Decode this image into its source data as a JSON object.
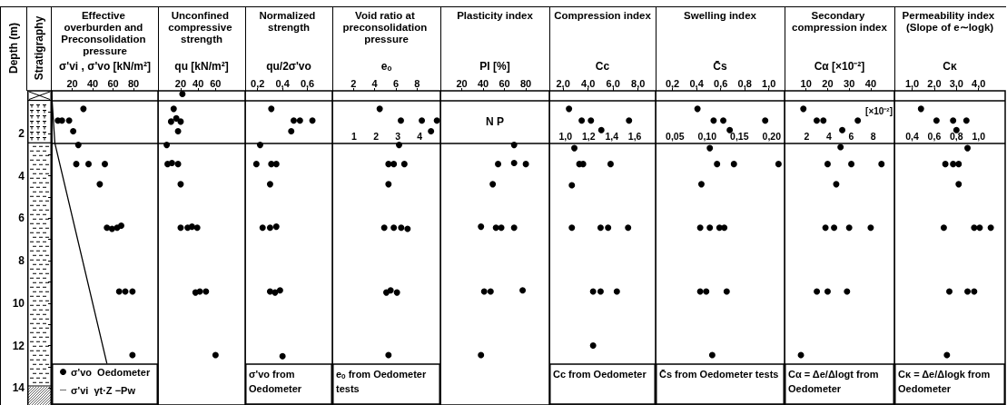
{
  "chart_data": [
    {
      "type": "scatter",
      "title": "Effective overburden and Preconsolidation pressure",
      "xlabel": "σ'vi , σ'vo [kN/m²]",
      "ylabel": "Depth (m)",
      "annotations": [
        "Stratigraphy"
      ],
      "xlim": [
        0,
        104
      ],
      "xticks": [
        20,
        40,
        60,
        80
      ],
      "ylim": [
        14.8,
        0
      ],
      "yticks": [
        {
          "value": 1,
          "label": null
        },
        2,
        {
          "value": 3,
          "label": null
        },
        4,
        {
          "value": 5,
          "label": null
        },
        6,
        {
          "value": 7,
          "label": null
        },
        8,
        {
          "value": 9,
          "label": null
        },
        10,
        {
          "value": 11,
          "label": null
        },
        12,
        {
          "value": 13,
          "label": null
        },
        14
      ],
      "marker": "circle",
      "legend": "bottom left",
      "ref_lines": [
        {
          "axis": "y",
          "value": 0.45
        },
        {
          "axis": "y",
          "value": 2.45
        }
      ],
      "series": [
        {
          "name": "σ'vo  Oedometer",
          "color": "#000000",
          "x": [
            31,
            6,
            10,
            17,
            21,
            26,
            24,
            36,
            52,
            47,
            54,
            59,
            64,
            68,
            66,
            72,
            79,
            79
          ],
          "values": [
            0.85,
            1.4,
            1.4,
            1.4,
            1.9,
            2.55,
            3.45,
            3.45,
            3.45,
            4.4,
            6.45,
            6.5,
            6.45,
            6.35,
            9.45,
            9.45,
            9.45,
            12.45
          ]
        },
        {
          "name": "σ'vi  γt·Z −Pw",
          "type": "line",
          "marker": "none",
          "color": "#000000",
          "x": [
            0,
            3,
            54
          ],
          "values": [
            0.2,
            2.45,
            12.85
          ]
        }
      ]
    },
    {
      "type": "scatter",
      "title": "Unconfined compressive strength",
      "xlabel": "qu [kN/m²]",
      "xlim": [
        -6,
        94
      ],
      "xticks": [
        20,
        40,
        60
      ],
      "ylim": [
        14.8,
        0
      ],
      "tick_labels": "x",
      "marker": "circle",
      "ref_lines": [
        {
          "axis": "y",
          "value": 0.45
        },
        {
          "axis": "y",
          "value": 2.45
        }
      ],
      "series": [
        {
          "color": "#000000",
          "x": [
            22,
            12,
            9,
            15,
            20,
            17,
            4,
            5,
            10,
            17,
            20,
            20,
            28,
            33,
            39,
            37,
            42,
            49,
            60
          ],
          "values": [
            0.15,
            0.85,
            1.45,
            1.3,
            1.45,
            1.9,
            2.55,
            3.45,
            3.4,
            3.45,
            4.4,
            6.45,
            6.45,
            6.4,
            6.45,
            9.5,
            9.45,
            9.45,
            12.45
          ]
        }
      ]
    },
    {
      "type": "scatter",
      "title": "Normalized strength",
      "xlabel": "qu/2σ'vo",
      "xlim": [
        0.1,
        0.8
      ],
      "xticks": [
        {
          "value": 0.2,
          "label": "0,2"
        },
        {
          "value": 0.4,
          "label": "0,4"
        },
        {
          "value": 0.6,
          "label": "0,6"
        }
      ],
      "ylim": [
        14.8,
        0
      ],
      "tick_labels": "x",
      "marker": "circle",
      "ref_lines": [
        {
          "axis": "y",
          "value": 0.45
        },
        {
          "axis": "y",
          "value": 2.45
        }
      ],
      "annotations": [
        "σ'vo from Oedometer"
      ],
      "series": [
        {
          "color": "#000000",
          "x": [
            0.31,
            0.49,
            0.54,
            0.64,
            0.47,
            0.22,
            0.19,
            0.31,
            0.35,
            0.3,
            0.24,
            0.3,
            0.35,
            0.3,
            0.34,
            0.38,
            0.4
          ],
          "values": [
            0.85,
            1.4,
            1.4,
            1.4,
            1.9,
            2.55,
            3.45,
            3.45,
            3.45,
            4.4,
            6.45,
            6.45,
            6.4,
            9.45,
            9.5,
            9.4,
            12.5
          ]
        }
      ]
    },
    {
      "type": "scatter",
      "title": "Void ratio at preconsolidation pressure",
      "xlabel": "eₒ",
      "xlim": [
        0,
        10.2
      ],
      "xticks": [
        2,
        4,
        6,
        8
      ],
      "x2lim": [
        0,
        4.95
      ],
      "x2ticks": [
        1,
        2,
        3,
        4
      ],
      "ylim": [
        14.8,
        0
      ],
      "tick_labels": "x",
      "marker": "circle",
      "ref_lines": [
        {
          "axis": "y",
          "value": 0.45
        },
        {
          "axis": "y",
          "value": 2.45
        }
      ],
      "annotations": [
        "eₒ from Oedometer tests"
      ],
      "series": [
        {
          "color": "#000000",
          "axis": "x2",
          "x": [
            2.17,
            3.14,
            4.1,
            4.79,
            4.52
          ],
          "values": [
            0.85,
            1.4,
            1.4,
            1.4,
            1.9
          ]
        },
        {
          "color": "#000000",
          "x": [
            6.3,
            5.3,
            5.8,
            6.8,
            5.3,
            4.9,
            5.8,
            6.5,
            7.1,
            5.1,
            5.5,
            6.1,
            5.3
          ],
          "values": [
            2.55,
            3.45,
            3.45,
            3.45,
            4.4,
            6.45,
            6.45,
            6.45,
            6.5,
            9.5,
            9.4,
            9.5,
            12.45
          ]
        }
      ]
    },
    {
      "type": "scatter",
      "title": "Plasticity index",
      "xlabel": "PI [%]",
      "xlim": [
        0,
        102
      ],
      "xticks": [
        20,
        40,
        60,
        80
      ],
      "ylim": [
        14.8,
        0
      ],
      "tick_labels": "x",
      "marker": "circle",
      "ref_lines": [
        {
          "axis": "y",
          "value": 0.45
        },
        {
          "axis": "y",
          "value": 2.45
        }
      ],
      "annotations": [
        "N P"
      ],
      "series": [
        {
          "color": "#000000",
          "x": [
            69,
            54,
            69,
            80,
            49,
            38,
            52,
            57,
            69,
            41,
            47,
            77,
            38
          ],
          "values": [
            2.55,
            3.45,
            3.4,
            3.45,
            4.4,
            6.4,
            6.45,
            6.45,
            6.45,
            9.45,
            9.45,
            9.4,
            12.45
          ]
        }
      ]
    },
    {
      "type": "scatter",
      "title": "Compression index",
      "xlabel": "Cc",
      "xlim": [
        0.9,
        9.4
      ],
      "xticks": [
        {
          "value": 2,
          "label": "2,0"
        },
        {
          "value": 4,
          "label": "4,0"
        },
        {
          "value": 6,
          "label": "6,0"
        },
        {
          "value": 8,
          "label": "8,0"
        }
      ],
      "x2lim": [
        0.86,
        1.78
      ],
      "x2ticks": [
        {
          "value": 1,
          "label": "1,0"
        },
        {
          "value": 1.2,
          "label": "1,2"
        },
        {
          "value": 1.4,
          "label": "1,4"
        },
        {
          "value": 1.6,
          "label": "1,6"
        }
      ],
      "ylim": [
        14.8,
        0
      ],
      "tick_labels": "x",
      "marker": "circle",
      "ref_lines": [
        {
          "axis": "y",
          "value": 0.45
        },
        {
          "axis": "y",
          "value": 2.45
        }
      ],
      "annotations": [
        "Cc from Oedometer"
      ],
      "series": [
        {
          "color": "#000000",
          "axis": "x2",
          "x": [
            1.03,
            1.14,
            1.22,
            1.55,
            1.31
          ],
          "values": [
            0.85,
            1.4,
            1.4,
            1.4,
            1.85
          ]
        },
        {
          "color": "#000000",
          "x": [
            2.9,
            3.3,
            3.6,
            5.8,
            2.7,
            2.7,
            5.0,
            5.6,
            7.2,
            4.4,
            5.0,
            6.3,
            4.4
          ],
          "values": [
            2.7,
            3.45,
            3.45,
            3.45,
            4.45,
            6.45,
            6.45,
            6.45,
            6.45,
            9.45,
            9.45,
            9.45,
            12.0
          ]
        }
      ]
    },
    {
      "type": "scatter",
      "title": "Swelling index",
      "xlabel": "C̄s",
      "xlim": [
        0.06,
        1.13
      ],
      "xticks": [
        {
          "value": 0.2,
          "label": "0,2"
        },
        {
          "value": 0.4,
          "label": "0,4"
        },
        {
          "value": 0.6,
          "label": "0,6"
        },
        {
          "value": 0.8,
          "label": "0,8"
        },
        {
          "value": 1,
          "label": "1,0"
        }
      ],
      "x2lim": [
        0.02,
        0.22
      ],
      "x2ticks": [
        {
          "value": 0.05,
          "label": "0,05"
        },
        {
          "value": 0.1,
          "label": "0,10"
        },
        {
          "value": 0.15,
          "label": "0,15"
        },
        {
          "value": 0.2,
          "label": "0,20"
        }
      ],
      "ylim": [
        14.8,
        0
      ],
      "tick_labels": "x",
      "marker": "circle",
      "ref_lines": [
        {
          "axis": "y",
          "value": 0.45
        },
        {
          "axis": "y",
          "value": 2.45
        }
      ],
      "annotations": [
        "C̄s from Oedometer tests"
      ],
      "series": [
        {
          "color": "#000000",
          "axis": "x2",
          "x": [
            0.085,
            0.11,
            0.125,
            0.19,
            0.135
          ],
          "values": [
            0.85,
            1.4,
            1.4,
            1.4,
            1.85
          ]
        },
        {
          "color": "#000000",
          "x": [
            0.51,
            0.57,
            0.71,
            1.08,
            0.44,
            0.43,
            0.51,
            0.59,
            0.63,
            0.43,
            0.48,
            0.65,
            0.53
          ],
          "values": [
            2.7,
            3.45,
            3.45,
            3.45,
            4.4,
            6.45,
            6.45,
            6.45,
            6.45,
            9.45,
            9.45,
            9.45,
            12.45
          ]
        }
      ]
    },
    {
      "type": "scatter",
      "title": "Secondary compression index",
      "xlabel": "Cα [×10⁻²]",
      "xlim": [
        0,
        51
      ],
      "xticks": [
        10,
        20,
        30,
        40
      ],
      "x2lim": [
        0,
        9.9
      ],
      "x2ticks": [
        2,
        4,
        6,
        8
      ],
      "x2label": "[×10⁻²]",
      "ylim": [
        14.8,
        0
      ],
      "tick_labels": "x",
      "marker": "circle",
      "ref_lines": [
        {
          "axis": "y",
          "value": 0.45
        },
        {
          "axis": "y",
          "value": 2.45
        }
      ],
      "annotations": [
        "Cα = Δe/Δlogt from Oedometer"
      ],
      "series": [
        {
          "color": "#000000",
          "axis": "x2",
          "x": [
            1.7,
            2.9,
            3.5,
            6.6,
            5.2
          ],
          "values": [
            0.85,
            1.4,
            1.4,
            1.4,
            1.85
          ]
        },
        {
          "color": "#000000",
          "x": [
            26,
            20,
            31,
            45,
            24,
            19,
            23,
            30,
            40,
            15,
            20,
            29,
            7.6
          ],
          "values": [
            2.65,
            3.45,
            3.45,
            3.45,
            4.4,
            6.45,
            6.45,
            6.45,
            6.45,
            9.45,
            9.45,
            9.45,
            12.45
          ]
        }
      ]
    },
    {
      "type": "scatter",
      "title": "Permeability index (Slope of e∼logk)",
      "xlabel": "Cκ",
      "xlim": [
        0.2,
        5.2
      ],
      "xticks": [
        {
          "value": 1,
          "label": "1,0"
        },
        {
          "value": 2,
          "label": "2,0"
        },
        {
          "value": 3,
          "label": "3,0"
        },
        {
          "value": 4,
          "label": "4,0"
        }
      ],
      "x2lim": [
        0.24,
        1.24
      ],
      "x2ticks": [
        {
          "value": 0.4,
          "label": "0,4"
        },
        {
          "value": 0.6,
          "label": "0,6"
        },
        {
          "value": 0.8,
          "label": "0,8"
        },
        {
          "value": 1,
          "label": "1,0"
        }
      ],
      "ylim": [
        14.8,
        0
      ],
      "tick_labels": "x",
      "marker": "circle",
      "ref_lines": [
        {
          "axis": "y",
          "value": 0.45
        },
        {
          "axis": "y",
          "value": 2.45
        }
      ],
      "annotations": [
        "Cκ = Δe/Δlogk from Oedometer"
      ],
      "series": [
        {
          "color": "#000000",
          "axis": "x2",
          "x": [
            0.48,
            0.62,
            0.77,
            0.89,
            0.8
          ],
          "values": [
            0.85,
            1.4,
            1.4,
            1.4,
            1.85
          ]
        },
        {
          "color": "#000000",
          "x": [
            3.5,
            2.5,
            2.85,
            3.1,
            3.1,
            2.43,
            3.8,
            4.05,
            4.55,
            2.68,
            3.5,
            3.8,
            2.57
          ],
          "values": [
            2.7,
            3.45,
            3.45,
            3.45,
            4.4,
            6.45,
            6.45,
            6.45,
            6.45,
            9.45,
            9.45,
            9.45,
            12.45
          ]
        }
      ]
    }
  ]
}
